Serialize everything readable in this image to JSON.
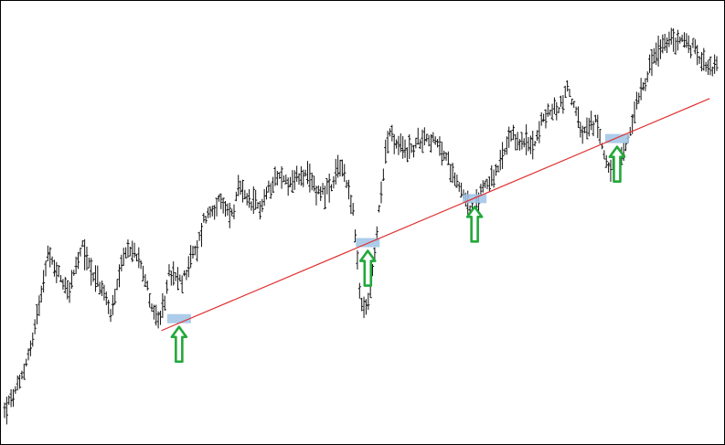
{
  "chart_data": {
    "type": "ohlc",
    "title": "",
    "xlabel": "",
    "ylabel": "",
    "grid": false,
    "legend": "none",
    "ylim": [
      0,
      100
    ],
    "xlim": [
      0,
      100
    ],
    "colors": {
      "bars": "#111111",
      "trendline": "#e03030",
      "touch_highlight": "#9ec3e6",
      "arrow": "#22a83a",
      "frame": "#000000",
      "background": "#ffffff"
    },
    "price_path": [
      [
        0,
        4
      ],
      [
        2,
        10
      ],
      [
        4,
        22
      ],
      [
        6,
        43
      ],
      [
        7,
        40
      ],
      [
        9,
        34
      ],
      [
        11,
        45
      ],
      [
        12,
        40
      ],
      [
        14,
        33
      ],
      [
        15,
        28
      ],
      [
        17,
        44
      ],
      [
        19,
        43
      ],
      [
        20,
        35
      ],
      [
        21,
        28
      ],
      [
        22,
        26
      ],
      [
        23,
        38
      ],
      [
        25,
        36
      ],
      [
        26,
        42
      ],
      [
        27,
        44
      ],
      [
        28,
        52
      ],
      [
        30,
        56
      ],
      [
        32,
        53
      ],
      [
        33,
        60
      ],
      [
        34,
        56
      ],
      [
        36,
        55
      ],
      [
        38,
        63
      ],
      [
        40,
        61
      ],
      [
        42,
        63
      ],
      [
        44,
        59
      ],
      [
        46,
        59
      ],
      [
        47,
        66
      ],
      [
        48,
        62
      ],
      [
        49,
        53
      ],
      [
        50,
        30
      ],
      [
        51,
        30
      ],
      [
        52,
        43
      ],
      [
        53,
        62
      ],
      [
        54,
        74
      ],
      [
        55,
        70
      ],
      [
        57,
        69
      ],
      [
        59,
        73
      ],
      [
        61,
        70
      ],
      [
        62,
        67
      ],
      [
        64,
        60
      ],
      [
        65,
        56
      ],
      [
        66,
        53
      ],
      [
        67,
        60
      ],
      [
        69,
        63
      ],
      [
        71,
        72
      ],
      [
        73,
        71
      ],
      [
        74,
        70
      ],
      [
        76,
        78
      ],
      [
        78,
        80
      ],
      [
        79,
        85
      ],
      [
        80,
        80
      ],
      [
        81,
        73
      ],
      [
        83,
        76
      ],
      [
        84,
        70
      ],
      [
        85,
        64
      ],
      [
        87,
        68
      ],
      [
        88,
        75
      ],
      [
        89,
        83
      ],
      [
        90,
        87
      ],
      [
        91,
        92
      ],
      [
        93,
        96
      ],
      [
        95,
        97
      ],
      [
        97,
        94
      ],
      [
        99,
        90
      ]
    ],
    "trendline": {
      "x": [
        22,
        99
      ],
      "y": [
        24,
        82
      ]
    },
    "touch_points": [
      {
        "x": 24.5,
        "y": 27
      },
      {
        "x": 51,
        "y": 46
      },
      {
        "x": 66,
        "y": 57
      },
      {
        "x": 86,
        "y": 72
      }
    ]
  }
}
